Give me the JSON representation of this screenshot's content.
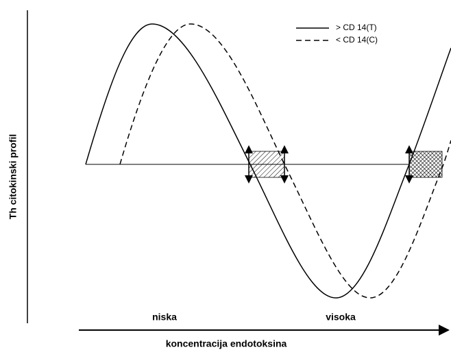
{
  "axes": {
    "y_label": "Th citokinski profil",
    "x_label": "koncentracija endotoksina"
  },
  "regions": [
    "niska",
    "visoka"
  ],
  "legend": [
    "> CD 14(T)",
    "< CD 14(C)"
  ]
}
